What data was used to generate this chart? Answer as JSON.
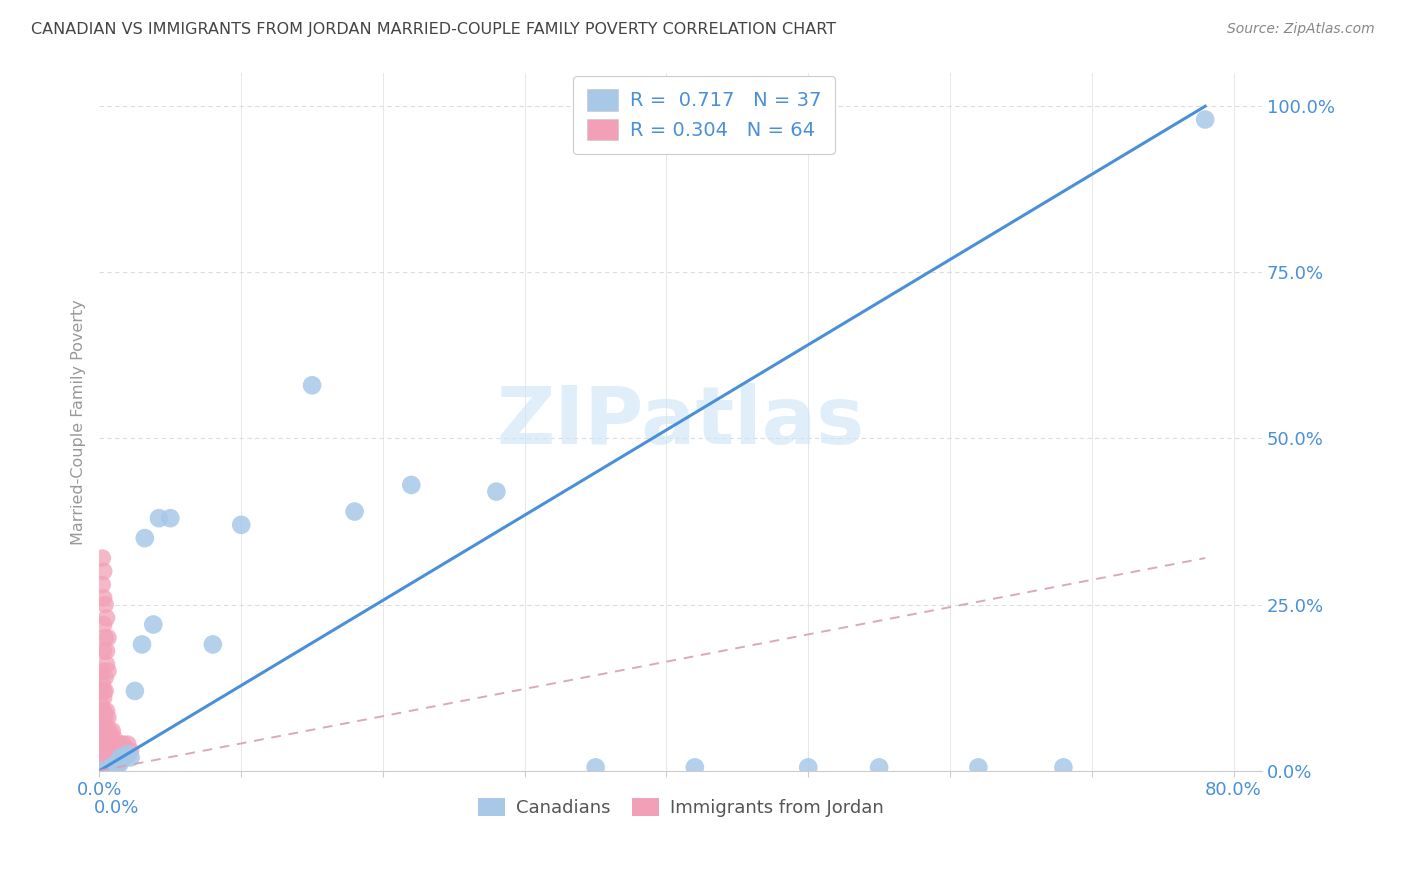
{
  "title": "CANADIAN VS IMMIGRANTS FROM JORDAN MARRIED-COUPLE FAMILY POVERTY CORRELATION CHART",
  "source": "Source: ZipAtlas.com",
  "ylabel": "Married-Couple Family Poverty",
  "canadians_R": 0.717,
  "canadians_N": 37,
  "jordan_R": 0.304,
  "jordan_N": 64,
  "canadians_color": "#a8c8e8",
  "jordan_color": "#f2a0b8",
  "canadians_line_color": "#4a90d9",
  "jordan_line_color": "#d4a0b8",
  "axis_label_color": "#4a90d9",
  "legend_text_color": "#4a90d9",
  "watermark_color": "#cce4f5",
  "canadians_x": [
    0.002,
    0.003,
    0.004,
    0.005,
    0.006,
    0.007,
    0.008,
    0.009,
    0.01,
    0.011,
    0.012,
    0.013,
    0.014,
    0.015,
    0.016,
    0.018,
    0.02,
    0.022,
    0.025,
    0.03,
    0.032,
    0.038,
    0.042,
    0.05,
    0.08,
    0.1,
    0.15,
    0.18,
    0.22,
    0.28,
    0.35,
    0.42,
    0.5,
    0.55,
    0.62,
    0.68,
    0.78
  ],
  "canadians_y": [
    0.0,
    0.0,
    0.0,
    0.0,
    0.0,
    0.0,
    0.005,
    0.005,
    0.005,
    0.01,
    0.01,
    0.01,
    0.01,
    0.02,
    0.02,
    0.02,
    0.025,
    0.02,
    0.12,
    0.19,
    0.35,
    0.22,
    0.38,
    0.38,
    0.19,
    0.37,
    0.58,
    0.39,
    0.43,
    0.42,
    0.005,
    0.005,
    0.005,
    0.005,
    0.005,
    0.005,
    0.98
  ],
  "jordan_x": [
    0.001,
    0.001,
    0.001,
    0.002,
    0.002,
    0.002,
    0.002,
    0.003,
    0.003,
    0.003,
    0.003,
    0.003,
    0.003,
    0.004,
    0.004,
    0.004,
    0.004,
    0.005,
    0.005,
    0.005,
    0.006,
    0.006,
    0.006,
    0.007,
    0.007,
    0.008,
    0.008,
    0.009,
    0.009,
    0.01,
    0.01,
    0.011,
    0.012,
    0.013,
    0.014,
    0.015,
    0.016,
    0.017,
    0.018,
    0.02,
    0.022,
    0.002,
    0.003,
    0.004,
    0.005,
    0.003,
    0.004,
    0.005,
    0.006,
    0.004,
    0.005,
    0.006,
    0.002,
    0.002,
    0.003,
    0.003,
    0.001,
    0.001,
    0.001,
    0.002,
    0.002,
    0.003,
    0.004,
    0.005
  ],
  "jordan_y": [
    0.0,
    0.02,
    0.05,
    0.0,
    0.02,
    0.04,
    0.07,
    0.0,
    0.01,
    0.03,
    0.06,
    0.09,
    0.12,
    0.01,
    0.03,
    0.07,
    0.12,
    0.02,
    0.05,
    0.09,
    0.01,
    0.04,
    0.08,
    0.02,
    0.06,
    0.01,
    0.05,
    0.02,
    0.06,
    0.01,
    0.05,
    0.03,
    0.02,
    0.04,
    0.03,
    0.04,
    0.03,
    0.04,
    0.03,
    0.04,
    0.03,
    0.15,
    0.18,
    0.14,
    0.16,
    0.22,
    0.2,
    0.18,
    0.15,
    0.25,
    0.23,
    0.2,
    0.28,
    0.32,
    0.26,
    0.3,
    0.08,
    0.1,
    0.12,
    0.09,
    0.13,
    0.11,
    0.08,
    0.06
  ],
  "can_line_x0": 0.0,
  "can_line_y0": 0.0,
  "can_line_x1": 0.78,
  "can_line_y1": 1.0,
  "jor_line_x0": 0.0,
  "jor_line_y0": 0.0,
  "jor_line_x1": 0.78,
  "jor_line_y1": 0.32,
  "xlim": [
    0.0,
    0.82
  ],
  "ylim": [
    0.0,
    1.05
  ],
  "x_ticks": [
    0.0,
    0.1,
    0.2,
    0.3,
    0.4,
    0.5,
    0.6,
    0.7,
    0.8
  ],
  "x_tick_labels": [
    "0.0%",
    "",
    "",
    "",
    "",
    "",
    "",
    "",
    "80.0%"
  ],
  "y_ticks": [
    0.0,
    0.25,
    0.5,
    0.75,
    1.0
  ],
  "y_tick_labels": [
    "0.0%",
    "25.0%",
    "50.0%",
    "75.0%",
    "100.0%"
  ]
}
